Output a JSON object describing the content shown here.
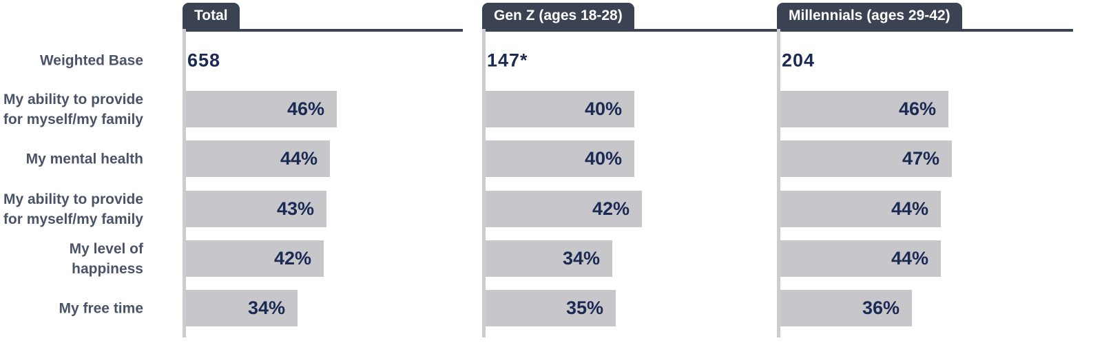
{
  "colors": {
    "navy": "#1b2a52",
    "bar_fill": "#c7c6cb",
    "header_slate": "#3b4252",
    "axis_gray": "#cdcad2",
    "row_label": "#4b5368",
    "background": "#ffffff"
  },
  "chart_data": {
    "type": "bar",
    "orientation": "horizontal",
    "row_header": "Weighted Base",
    "value_suffix": "%",
    "categories": [
      "My ability to provide\nfor myself/my family",
      "My mental health",
      "My ability to provide\nfor myself/my family",
      "My level of\nhappiness",
      "My free time"
    ],
    "series": [
      {
        "name": "Total",
        "weighted_base": "658",
        "values": [
          46,
          44,
          43,
          42,
          34
        ]
      },
      {
        "name": "Gen Z (ages 18-28)",
        "weighted_base": "147*",
        "values": [
          40,
          40,
          42,
          34,
          35
        ]
      },
      {
        "name": "Millennials (ages 29-42)",
        "weighted_base": "204",
        "values": [
          46,
          47,
          44,
          44,
          36
        ]
      }
    ],
    "xlim": [
      0,
      80
    ],
    "grid": false,
    "legend_position": "column-tabs"
  }
}
